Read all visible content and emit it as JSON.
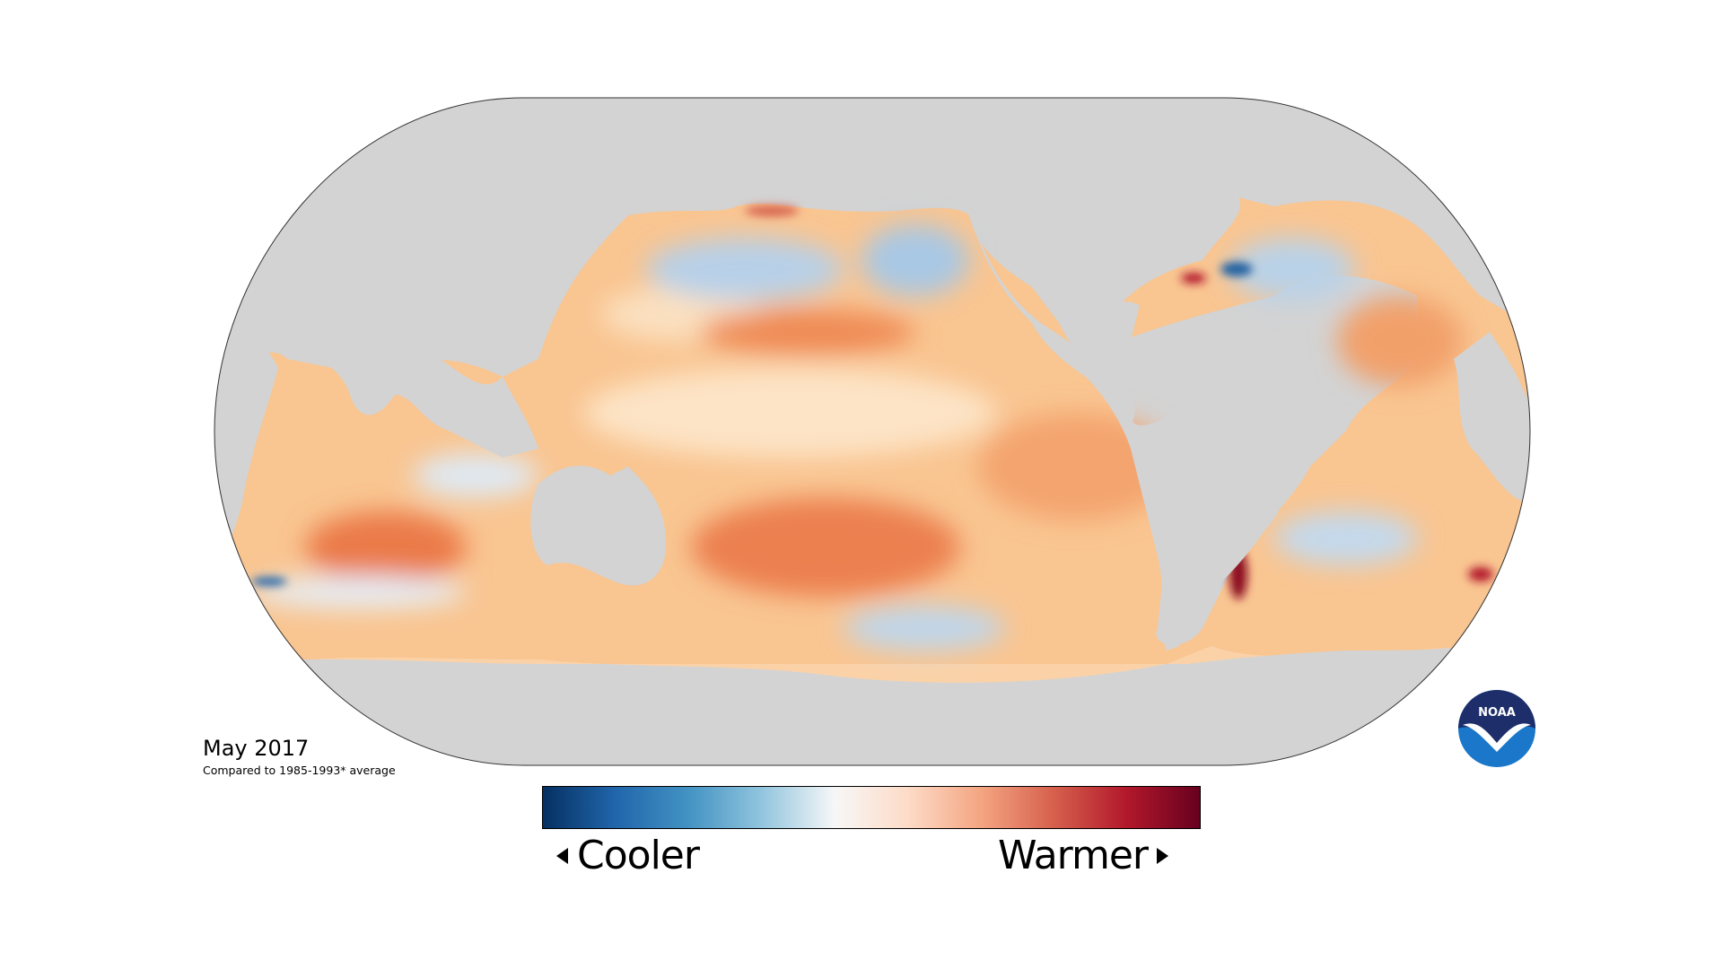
{
  "title": "May 2017",
  "subtitle": "Compared to 1985-1993* average",
  "legend": {
    "cooler_label": "Cooler",
    "warmer_label": "Warmer",
    "colors": [
      "#053061",
      "#2166ac",
      "#4393c3",
      "#92c5de",
      "#f7f7f7",
      "#fddbc7",
      "#f4a582",
      "#d6604d",
      "#b2182b",
      "#67001f"
    ]
  },
  "logo": {
    "text": "NOAA"
  },
  "map": {
    "projection": "Robinson",
    "land_color": "#d3d3d3",
    "ocean_base_color": "#f9c08a"
  }
}
